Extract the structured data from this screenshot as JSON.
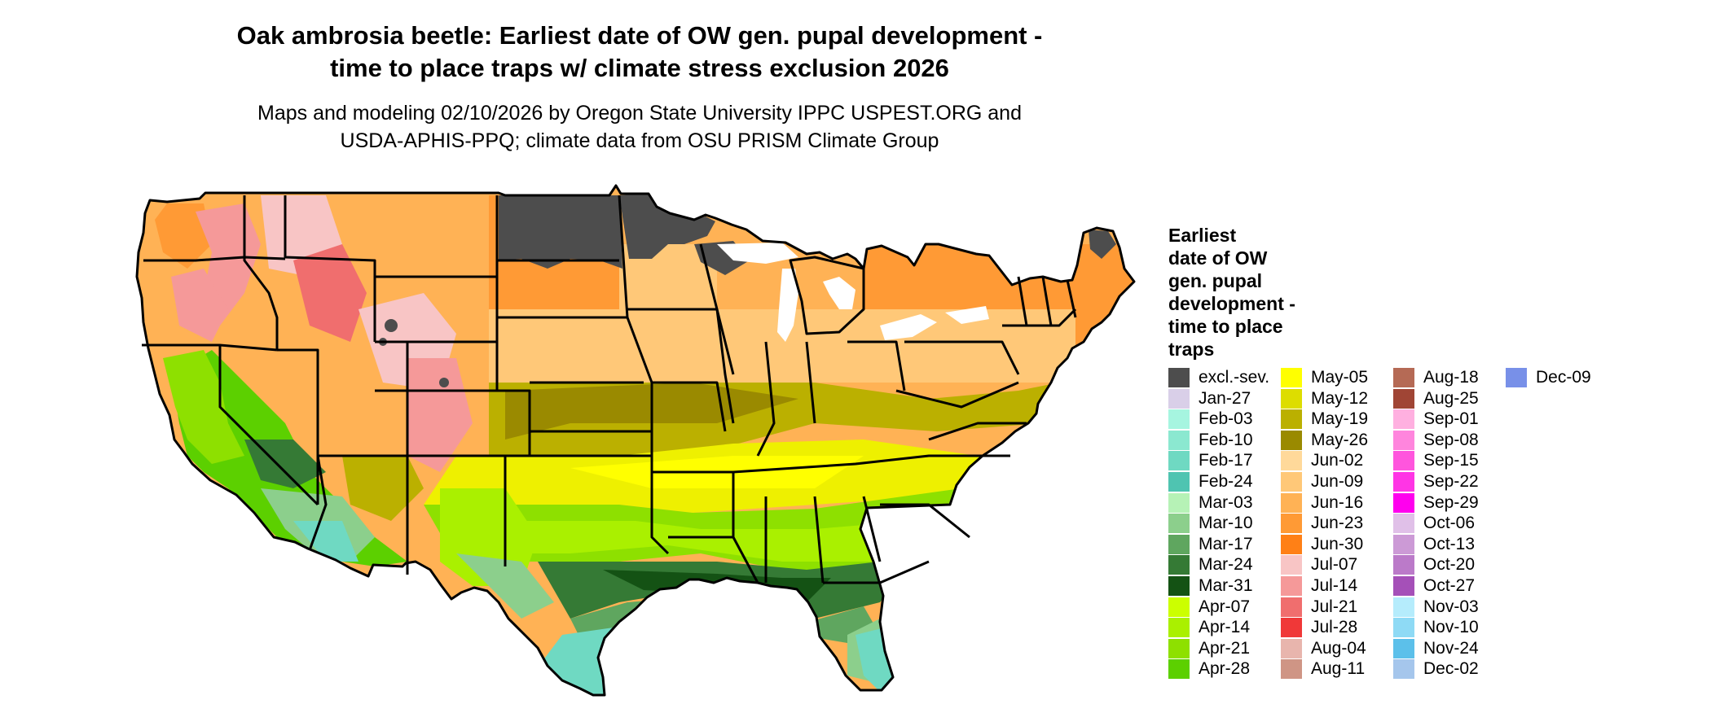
{
  "title": {
    "line1": "Oak ambrosia beetle: Earliest date of OW gen. pupal development -",
    "line2": "time to place traps w/ climate stress exclusion 2026"
  },
  "subtitle": {
    "line1": "Maps and modeling 02/10/2026 by Oregon State University IPPC USPEST.ORG and",
    "line2": "USDA-APHIS-PPQ; climate data from OSU PRISM Climate Group"
  },
  "legend": {
    "title_lines": [
      "Earliest",
      "date of OW",
      "gen. pupal",
      "development -",
      "time to place",
      "traps"
    ],
    "items": [
      {
        "label": "excl.-sev.",
        "color": "#4d4d4d"
      },
      {
        "label": "Jan-27",
        "color": "#d9cfe8"
      },
      {
        "label": "Feb-03",
        "color": "#a6f5e0"
      },
      {
        "label": "Feb-10",
        "color": "#8be8d0"
      },
      {
        "label": "Feb-17",
        "color": "#6fd9c2"
      },
      {
        "label": "Feb-24",
        "color": "#4fc4b1"
      },
      {
        "label": "Mar-03",
        "color": "#b6f2b6"
      },
      {
        "label": "Mar-10",
        "color": "#8ccf8c"
      },
      {
        "label": "Mar-17",
        "color": "#5fa65f"
      },
      {
        "label": "Mar-24",
        "color": "#357a35"
      },
      {
        "label": "Mar-31",
        "color": "#145214"
      },
      {
        "label": "Apr-07",
        "color": "#ccff00"
      },
      {
        "label": "Apr-14",
        "color": "#aaf000"
      },
      {
        "label": "Apr-21",
        "color": "#8ee000"
      },
      {
        "label": "Apr-28",
        "color": "#5cd000"
      },
      {
        "label": "May-05",
        "color": "#ffff00"
      },
      {
        "label": "May-12",
        "color": "#dddd00"
      },
      {
        "label": "May-19",
        "color": "#bbb000"
      },
      {
        "label": "May-26",
        "color": "#9a8a00"
      },
      {
        "label": "Jun-02",
        "color": "#ffd99a"
      },
      {
        "label": "Jun-09",
        "color": "#ffc878"
      },
      {
        "label": "Jun-16",
        "color": "#ffb255"
      },
      {
        "label": "Jun-23",
        "color": "#ff9a35"
      },
      {
        "label": "Jun-30",
        "color": "#ff8016"
      },
      {
        "label": "Jul-07",
        "color": "#f8c5c5"
      },
      {
        "label": "Jul-14",
        "color": "#f59999"
      },
      {
        "label": "Jul-21",
        "color": "#f06e6e"
      },
      {
        "label": "Jul-28",
        "color": "#f03838"
      },
      {
        "label": "Aug-04",
        "color": "#e8b5ad"
      },
      {
        "label": "Aug-11",
        "color": "#cf9585"
      },
      {
        "label": "Aug-18",
        "color": "#b56a55"
      },
      {
        "label": "Aug-25",
        "color": "#a04535"
      },
      {
        "label": "Sep-01",
        "color": "#ffb0e0"
      },
      {
        "label": "Sep-08",
        "color": "#ff85dd"
      },
      {
        "label": "Sep-15",
        "color": "#ff55dd"
      },
      {
        "label": "Sep-22",
        "color": "#ff35e5"
      },
      {
        "label": "Sep-29",
        "color": "#ff00ee"
      },
      {
        "label": "Oct-06",
        "color": "#e0c0e8"
      },
      {
        "label": "Oct-13",
        "color": "#cc9ad6"
      },
      {
        "label": "Oct-20",
        "color": "#bb7ac9"
      },
      {
        "label": "Oct-27",
        "color": "#a550b8"
      },
      {
        "label": "Nov-03",
        "color": "#b5ecfc"
      },
      {
        "label": "Nov-10",
        "color": "#8edaf5"
      },
      {
        "label": "Nov-24",
        "color": "#5cc0ea"
      },
      {
        "label": "Dec-02",
        "color": "#a5c6ec"
      },
      {
        "label": "Dec-09",
        "color": "#7890e8"
      }
    ]
  },
  "palette": {
    "excluded": "#4d4d4d",
    "state_border": "#000000"
  }
}
